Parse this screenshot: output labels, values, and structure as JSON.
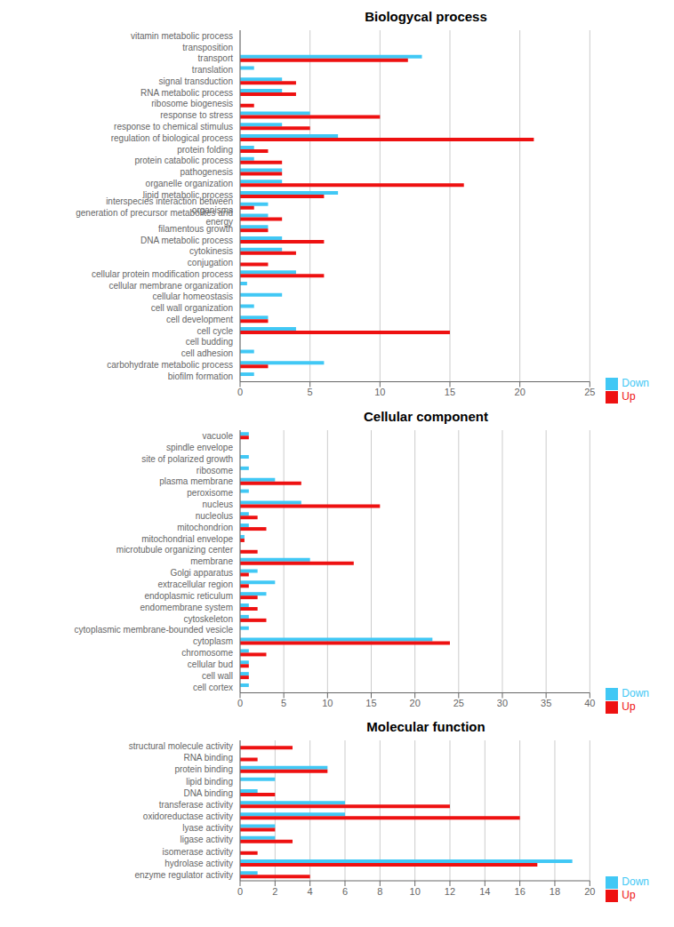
{
  "chart_data": [
    {
      "type": "bar",
      "orientation": "horizontal",
      "title": "Biologycal process",
      "categories": [
        "vitamin metabolic process",
        "transposition",
        "transport",
        "translation",
        "signal transduction",
        "RNA metabolic process",
        "ribosome biogenesis",
        "response to stress",
        "response to chemical stimulus",
        "regulation of biological process",
        "protein folding",
        "protein catabolic process",
        "pathogenesis",
        "organelle organization",
        "lipid metabolic process",
        "interspecies interaction between organisms",
        "generation of precursor metabolites and energy",
        "filamentous growth",
        "DNA metabolic process",
        "cytokinesis",
        "conjugation",
        "cellular protein modification process",
        "cellular membrane organization",
        "cellular homeostasis",
        "cell wall organization",
        "cell development",
        "cell cycle",
        "cell budding",
        "cell adhesion",
        "carbohydrate metabolic process",
        "biofilm formation"
      ],
      "series": [
        {
          "name": "Down",
          "color": "#41C8F5",
          "values": [
            0,
            0,
            13,
            1,
            3,
            3,
            0,
            5,
            3,
            7,
            1,
            1,
            3,
            3,
            7,
            2,
            2,
            2,
            3,
            3,
            0,
            4,
            0.5,
            3,
            1,
            2,
            4,
            0,
            1,
            6,
            1
          ]
        },
        {
          "name": "Up",
          "color": "#EE1111",
          "values": [
            0,
            0,
            12,
            0,
            4,
            4,
            1,
            10,
            5,
            21,
            2,
            3,
            3,
            16,
            6,
            1,
            3,
            2,
            6,
            4,
            2,
            6,
            0,
            0,
            0,
            2,
            15,
            0,
            0,
            2,
            0
          ]
        }
      ],
      "xlim": [
        0,
        25
      ],
      "xticks": [
        0,
        5,
        10,
        15,
        20,
        25
      ],
      "grid": true,
      "legend": "lower right"
    },
    {
      "type": "bar",
      "orientation": "horizontal",
      "title": "Cellular component",
      "categories": [
        "vacuole",
        "spindle envelope",
        "site of polarized growth",
        "ribosome",
        "plasma membrane",
        "peroxisome",
        "nucleus",
        "nucleolus",
        "mitochondrion",
        "mitochondrial envelope",
        "microtubule organizing center",
        "membrane",
        "Golgi apparatus",
        "extracellular region",
        "endoplasmic reticulum",
        "endomembrane system",
        "cytoskeleton",
        "cytoplasmic membrane-bounded vesicle",
        "cytoplasm",
        "chromosome",
        "cellular bud",
        "cell wall",
        "cell cortex"
      ],
      "series": [
        {
          "name": "Down",
          "color": "#41C8F5",
          "values": [
            1,
            0,
            1,
            1,
            4,
            1,
            7,
            1,
            1,
            0.5,
            0,
            8,
            2,
            4,
            3,
            1,
            1,
            1,
            22,
            1,
            1,
            1,
            1
          ]
        },
        {
          "name": "Up",
          "color": "#EE1111",
          "values": [
            1,
            0,
            0,
            0,
            7,
            0,
            16,
            2,
            3,
            0.5,
            2,
            13,
            1,
            1,
            2,
            2,
            3,
            0,
            24,
            3,
            1,
            1,
            0
          ]
        }
      ],
      "xlim": [
        0,
        40
      ],
      "xticks": [
        0,
        5,
        10,
        15,
        20,
        25,
        30,
        35,
        40
      ],
      "grid": true,
      "legend": "lower right"
    },
    {
      "type": "bar",
      "orientation": "horizontal",
      "title": "Molecular function",
      "categories": [
        "structural molecule activity",
        "RNA binding",
        "protein binding",
        "lipid binding",
        "DNA binding",
        "transferase activity",
        "oxidoreductase activity",
        "lyase activity",
        "ligase activity",
        "isomerase activity",
        "hydrolase activity",
        "enzyme regulator activity"
      ],
      "series": [
        {
          "name": "Down",
          "color": "#41C8F5",
          "values": [
            0,
            0,
            5,
            2,
            1,
            6,
            6,
            2,
            2,
            0,
            19,
            1
          ]
        },
        {
          "name": "Up",
          "color": "#EE1111",
          "values": [
            3,
            1,
            5,
            0,
            2,
            12,
            16,
            2,
            3,
            1,
            17,
            4
          ]
        }
      ],
      "xlim": [
        0,
        20
      ],
      "xticks": [
        0,
        2,
        4,
        6,
        8,
        10,
        12,
        14,
        16,
        18,
        20
      ],
      "grid": true,
      "legend": "lower right"
    }
  ]
}
